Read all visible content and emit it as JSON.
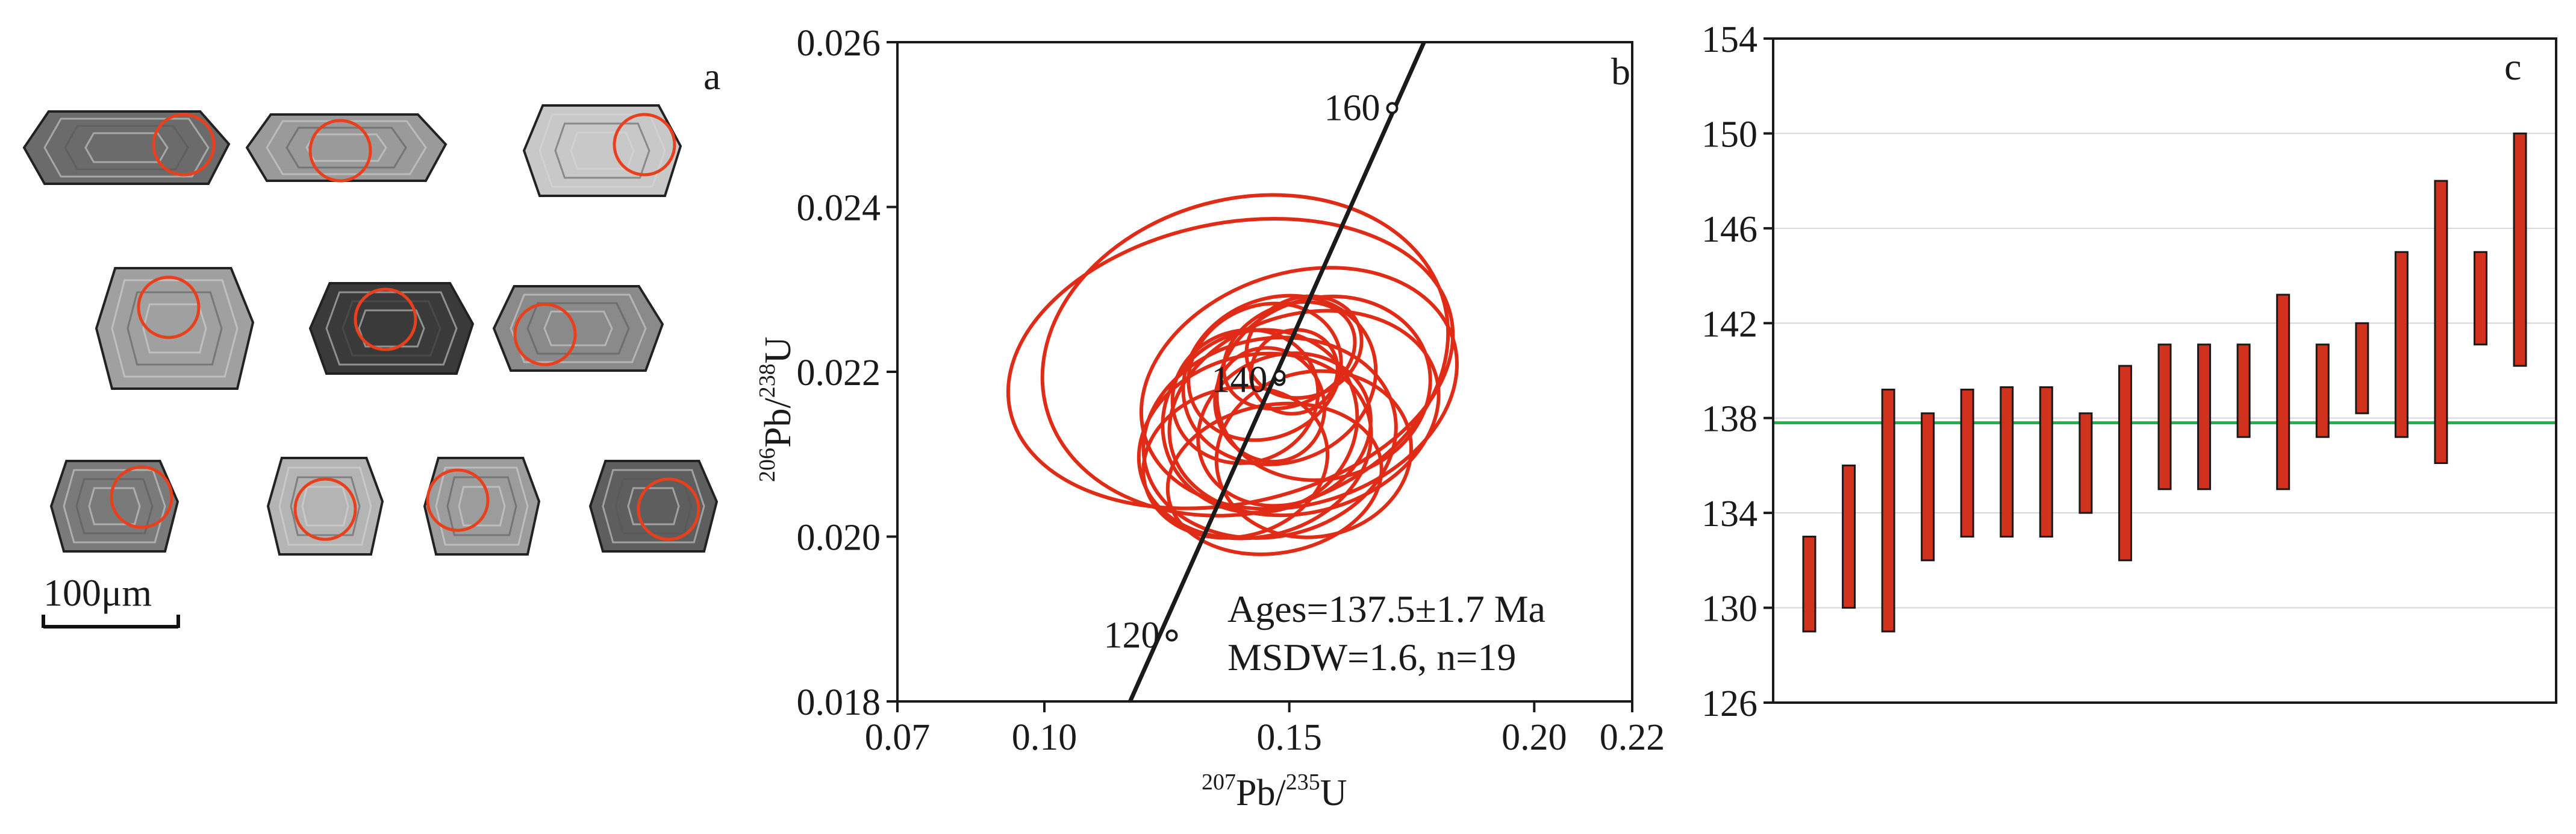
{
  "figure": {
    "panels": [
      {
        "label": "a",
        "kind": "zircon-cl-images"
      },
      {
        "label": "b",
        "kind": "concordia"
      },
      {
        "label": "c",
        "kind": "weighted-mean-age"
      }
    ]
  },
  "panel_a": {
    "label": "a",
    "scale_bar_label": "100μm",
    "grains": [
      {
        "tone": "#6b6b6b",
        "row": 1
      },
      {
        "tone": "#9a9a9a",
        "row": 1
      },
      {
        "tone": "#c8c8c8",
        "row": 1
      },
      {
        "tone": "#a0a0a0",
        "row": 2
      },
      {
        "tone": "#3a3a3a",
        "row": 2
      },
      {
        "tone": "#8a8a8a",
        "row": 2
      },
      {
        "tone": "#7a7a7a",
        "row": 3
      },
      {
        "tone": "#b4b4b4",
        "row": 3
      },
      {
        "tone": "#9c9c9c",
        "row": 3
      },
      {
        "tone": "#5e5e5e",
        "row": 3
      }
    ],
    "spot_color": "#e8401c"
  },
  "chart_data": [
    {
      "type": "scatter",
      "subtype": "concordia",
      "panel_label": "b",
      "xlabel_sup": "207",
      "xlabel_main": "Pb/",
      "xlabel_sup2": "235",
      "xlabel_end": "U",
      "ylabel_sup": "206",
      "ylabel_main": "Pb/",
      "ylabel_sup2": "238",
      "ylabel_end": "U",
      "xlim": [
        0.07,
        0.22
      ],
      "ylim": [
        0.018,
        0.026
      ],
      "xticks": [
        "0.07",
        "0.10",
        "0.15",
        "0.20",
        "0.22"
      ],
      "xtick_values": [
        0.07,
        0.1,
        0.15,
        0.2,
        0.22
      ],
      "yticks": [
        "0.018",
        "0.020",
        "0.022",
        "0.024",
        "0.026"
      ],
      "ytick_values": [
        0.018,
        0.02,
        0.022,
        0.024,
        0.026
      ],
      "concordia_line": [
        [
          0.1175,
          0.018
        ],
        [
          0.1775,
          0.026
        ]
      ],
      "age_markers": [
        {
          "age": "120",
          "x": 0.126,
          "y": 0.0188
        },
        {
          "age": "140",
          "x": 0.148,
          "y": 0.0219
        },
        {
          "age": "160",
          "x": 0.171,
          "y": 0.0252
        }
      ],
      "ellipse_color": "#e02b17",
      "ellipses": [
        {
          "cx": 0.138,
          "cy": 0.0221,
          "rx": 0.046,
          "ry": 0.0017,
          "angle": 12
        },
        {
          "cx": 0.141,
          "cy": 0.0222,
          "rx": 0.042,
          "ry": 0.0019,
          "angle": 15
        },
        {
          "cx": 0.152,
          "cy": 0.0218,
          "rx": 0.033,
          "ry": 0.0014,
          "angle": 18
        },
        {
          "cx": 0.146,
          "cy": 0.0212,
          "rx": 0.026,
          "ry": 0.0012,
          "angle": 12
        },
        {
          "cx": 0.148,
          "cy": 0.0219,
          "rx": 0.02,
          "ry": 0.001,
          "angle": 20
        },
        {
          "cx": 0.143,
          "cy": 0.0211,
          "rx": 0.024,
          "ry": 0.0011,
          "angle": 14
        },
        {
          "cx": 0.153,
          "cy": 0.0215,
          "rx": 0.028,
          "ry": 0.0012,
          "angle": 16
        },
        {
          "cx": 0.149,
          "cy": 0.0213,
          "rx": 0.018,
          "ry": 0.0009,
          "angle": 22
        },
        {
          "cx": 0.145,
          "cy": 0.022,
          "rx": 0.016,
          "ry": 0.0008,
          "angle": 25
        },
        {
          "cx": 0.157,
          "cy": 0.0218,
          "rx": 0.022,
          "ry": 0.0011,
          "angle": 15
        },
        {
          "cx": 0.15,
          "cy": 0.0222,
          "rx": 0.014,
          "ry": 0.0006,
          "angle": 25
        },
        {
          "cx": 0.139,
          "cy": 0.0209,
          "rx": 0.019,
          "ry": 0.0009,
          "angle": 14
        },
        {
          "cx": 0.155,
          "cy": 0.021,
          "rx": 0.02,
          "ry": 0.001,
          "angle": 12
        },
        {
          "cx": 0.146,
          "cy": 0.0216,
          "rx": 0.011,
          "ry": 0.0007,
          "angle": 28
        },
        {
          "cx": 0.141,
          "cy": 0.0217,
          "rx": 0.015,
          "ry": 0.0008,
          "angle": 18
        },
        {
          "cx": 0.153,
          "cy": 0.0223,
          "rx": 0.012,
          "ry": 0.0006,
          "angle": 22
        },
        {
          "cx": 0.147,
          "cy": 0.0207,
          "rx": 0.022,
          "ry": 0.0009,
          "angle": 10
        },
        {
          "cx": 0.151,
          "cy": 0.022,
          "rx": 0.009,
          "ry": 0.0005,
          "angle": 30
        },
        {
          "cx": 0.144,
          "cy": 0.0214,
          "rx": 0.02,
          "ry": 0.0011,
          "angle": 18
        }
      ],
      "mean_point": {
        "x": 0.148,
        "y": 0.02195
      },
      "annotation_line1": "Ages=137.5±1.7 Ma",
      "annotation_line2": "MSDW=1.6, n=19"
    },
    {
      "type": "bar",
      "subtype": "age-error-bars",
      "panel_label": "c",
      "ylim": [
        126,
        154
      ],
      "yticks": [
        "126",
        "130",
        "134",
        "138",
        "142",
        "146",
        "150",
        "154"
      ],
      "ytick_values": [
        126,
        130,
        134,
        138,
        142,
        146,
        150,
        154
      ],
      "mean_age": 137.8,
      "mean_line_color": "#22b04a",
      "bar_color": "#d0321e",
      "bars": [
        {
          "low": 129.0,
          "high": 133.0
        },
        {
          "low": 130.0,
          "high": 136.0
        },
        {
          "low": 129.0,
          "high": 139.2
        },
        {
          "low": 132.0,
          "high": 138.2
        },
        {
          "low": 133.0,
          "high": 139.2
        },
        {
          "low": 133.0,
          "high": 139.3
        },
        {
          "low": 133.0,
          "high": 139.3
        },
        {
          "low": 134.0,
          "high": 138.2
        },
        {
          "low": 132.0,
          "high": 140.2
        },
        {
          "low": 135.0,
          "high": 141.1
        },
        {
          "low": 135.0,
          "high": 141.1
        },
        {
          "low": 137.2,
          "high": 141.1
        },
        {
          "low": 135.0,
          "high": 143.2
        },
        {
          "low": 137.2,
          "high": 141.1
        },
        {
          "low": 138.2,
          "high": 142.0
        },
        {
          "low": 137.2,
          "high": 145.0
        },
        {
          "low": 136.1,
          "high": 148.0
        },
        {
          "low": 141.1,
          "high": 145.0
        },
        {
          "low": 140.2,
          "high": 150.0
        }
      ]
    }
  ]
}
